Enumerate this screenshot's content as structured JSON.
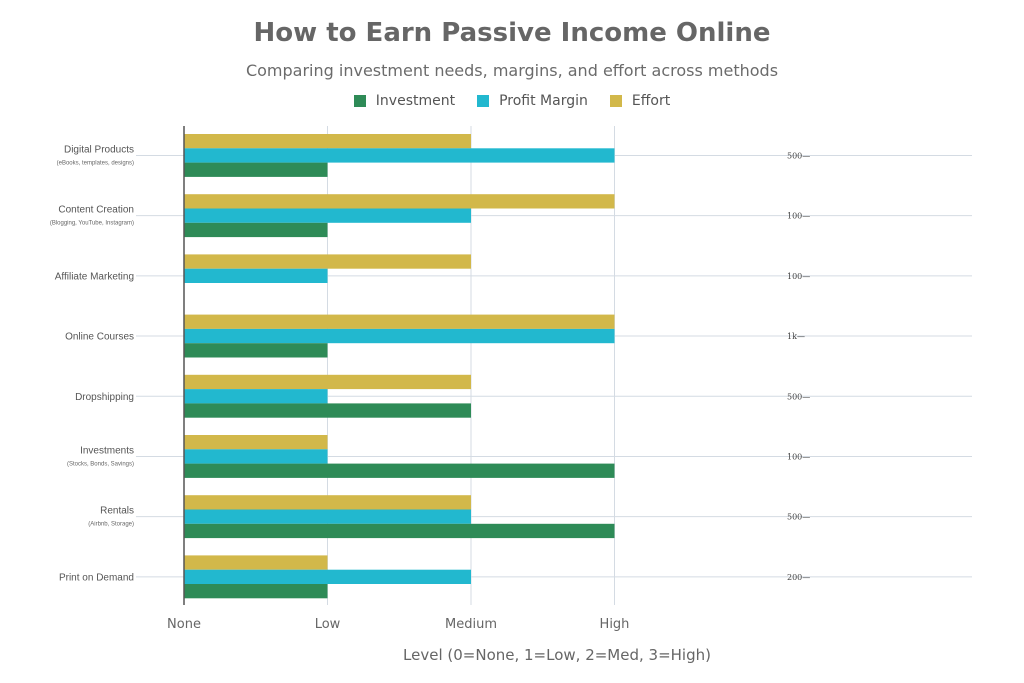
{
  "chart_data": {
    "type": "bar",
    "orientation": "horizontal",
    "title": "How to Earn Passive Income Online",
    "subtitle": "Comparing investment needs, margins, and effort across methods",
    "xlabel": "Level (0=None, 1=Low, 2=Med, 3=High)",
    "xlim": [
      0,
      3
    ],
    "xticks": [
      0,
      1,
      2,
      3
    ],
    "xticklabels": [
      "None",
      "Low",
      "Medium",
      "High"
    ],
    "grid": true,
    "legend_position": "top-center",
    "categories": [
      {
        "label": "Digital Products",
        "sublabel": "(eBooks, templates, designs)",
        "right_label": "500—"
      },
      {
        "label": "Content Creation",
        "sublabel": "(Blogging, YouTube, Instagram)",
        "right_label": "100—"
      },
      {
        "label": "Affiliate Marketing",
        "sublabel": "",
        "right_label": "100—"
      },
      {
        "label": "Online Courses",
        "sublabel": "",
        "right_label": "1k—"
      },
      {
        "label": "Dropshipping",
        "sublabel": "",
        "right_label": "500—"
      },
      {
        "label": "Investments",
        "sublabel": "(Stocks, Bonds, Savings)",
        "right_label": "100—"
      },
      {
        "label": "Rentals",
        "sublabel": "(Airbnb, Storage)",
        "right_label": "500—"
      },
      {
        "label": "Print on Demand",
        "sublabel": "",
        "right_label": "200—"
      }
    ],
    "series": [
      {
        "name": "Investment",
        "color": "#2e8b57",
        "values": [
          1,
          1,
          0,
          1,
          2,
          3,
          3,
          1
        ]
      },
      {
        "name": "Profit Margin",
        "color": "#22b8cf",
        "values": [
          3,
          2,
          1,
          3,
          1,
          1,
          2,
          2
        ]
      },
      {
        "name": "Effort",
        "color": "#d2b84a",
        "values": [
          2,
          3,
          2,
          3,
          2,
          1,
          2,
          1
        ]
      }
    ]
  }
}
